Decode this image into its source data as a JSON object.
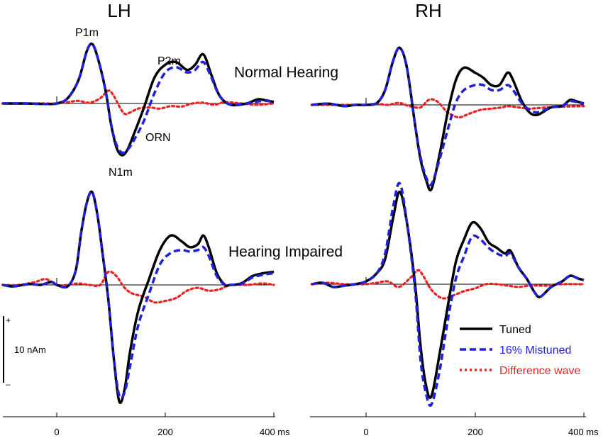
{
  "figure": {
    "hemisphere_left": "LH",
    "hemisphere_right": "RH",
    "condition_top": "Normal Hearing",
    "condition_bottom": "Hearing Impaired",
    "peaks": {
      "p1m": "P1m",
      "p2m": "P2m",
      "orn": "ORN",
      "n1m": "N1m"
    },
    "scale_bar": {
      "label": "10 nAm",
      "plus": "+",
      "minus": "–"
    },
    "legend": [
      {
        "label": "Tuned",
        "color": "#000000",
        "style": "solid"
      },
      {
        "label": "16% Mistuned",
        "color": "#1f1fdd",
        "style": "dashed"
      },
      {
        "label": "Difference wave",
        "color": "#ee2020",
        "style": "dotted"
      }
    ],
    "x_ticks_left": [
      "0",
      "200",
      "400 ms"
    ],
    "x_ticks_right": [
      "0",
      "200",
      "400 ms"
    ]
  },
  "chart_data": [
    {
      "type": "line",
      "panel": "LH",
      "condition": "Normal Hearing",
      "x_unit": "ms",
      "y_unit": "nAm",
      "xlim": [
        -100,
        400
      ],
      "series": [
        {
          "name": "Tuned",
          "color": "#000000",
          "style": "solid",
          "x": [
            -100,
            -60,
            -20,
            0,
            20,
            40,
            55,
            65,
            75,
            90,
            100,
            110,
            120,
            130,
            140,
            160,
            180,
            200,
            220,
            240,
            255,
            270,
            285,
            300,
            320,
            350,
            370,
            385,
            400
          ],
          "y": [
            0,
            0,
            -0.2,
            0,
            2,
            9,
            20,
            23,
            18,
            5,
            -8,
            -17,
            -20,
            -18,
            -13,
            -2,
            10,
            15,
            16,
            13,
            15,
            19,
            11,
            3,
            -0.5,
            0,
            1.6,
            1.2,
            0.6
          ]
        },
        {
          "name": "16% Mistuned",
          "color": "#1f1fdd",
          "style": "dashed",
          "x": [
            -100,
            -60,
            -20,
            0,
            20,
            40,
            55,
            65,
            75,
            90,
            100,
            110,
            120,
            130,
            140,
            160,
            180,
            200,
            220,
            240,
            255,
            270,
            285,
            300,
            320,
            350,
            370,
            385,
            400
          ],
          "y": [
            0,
            0,
            -0.2,
            0,
            2,
            9,
            20,
            23,
            18,
            5,
            -8,
            -16,
            -19,
            -18,
            -15,
            -7,
            4,
            12,
            14,
            12,
            13,
            16,
            10,
            3,
            -0.5,
            0,
            0.8,
            1.0,
            0.5
          ]
        },
        {
          "name": "Difference wave",
          "color": "#ee2020",
          "style": "dotted",
          "x": [
            -100,
            -60,
            -20,
            0,
            20,
            40,
            60,
            80,
            95,
            105,
            115,
            125,
            135,
            150,
            170,
            190,
            210,
            230,
            250,
            270,
            290,
            310,
            340,
            370,
            400
          ],
          "y": [
            0,
            0,
            0,
            0,
            0.5,
            1,
            0.3,
            2,
            5,
            3,
            -1,
            -4,
            -3.5,
            -2,
            -1.5,
            -2,
            -1,
            -1.2,
            0,
            0.3,
            -0.5,
            0.5,
            0,
            -0.5,
            0
          ]
        }
      ]
    },
    {
      "type": "line",
      "panel": "RH",
      "condition": "Normal Hearing",
      "x_unit": "ms",
      "y_unit": "nAm",
      "xlim": [
        -100,
        400
      ],
      "series": [
        {
          "name": "Tuned",
          "color": "#000000",
          "style": "solid",
          "x": [
            -100,
            -70,
            -40,
            -20,
            0,
            20,
            35,
            50,
            62,
            75,
            90,
            100,
            110,
            120,
            135,
            150,
            165,
            180,
            200,
            215,
            230,
            245,
            260,
            270,
            285,
            300,
            315,
            340,
            360,
            375,
            390,
            400
          ],
          "y": [
            0,
            0.5,
            -0.5,
            0,
            0,
            0.8,
            6,
            18,
            23,
            15,
            -8,
            -22,
            -30,
            -34,
            -20,
            -3,
            10,
            15,
            13,
            11,
            8,
            8,
            13,
            10,
            2,
            -3,
            -4,
            -1,
            -0.5,
            2,
            1.2,
            0.6
          ]
        },
        {
          "name": "16% Mistuned",
          "color": "#1f1fdd",
          "style": "dashed",
          "x": [
            -100,
            -70,
            -40,
            -20,
            0,
            20,
            35,
            50,
            62,
            75,
            90,
            100,
            110,
            120,
            135,
            150,
            165,
            180,
            200,
            215,
            230,
            245,
            260,
            270,
            285,
            300,
            315,
            340,
            360,
            375,
            390,
            400
          ],
          "y": [
            0,
            0.5,
            -0.5,
            0,
            0,
            0.8,
            6,
            18,
            23,
            15,
            -8,
            -21,
            -29,
            -32,
            -22,
            -10,
            1,
            6,
            8,
            8,
            6,
            6,
            8,
            6,
            1,
            -2,
            -3,
            -1,
            -0.5,
            1.5,
            1,
            0.5
          ]
        },
        {
          "name": "Difference wave",
          "color": "#ee2020",
          "style": "dotted",
          "x": [
            -100,
            -60,
            -20,
            0,
            20,
            40,
            60,
            80,
            100,
            115,
            130,
            150,
            170,
            190,
            210,
            230,
            250,
            260,
            280,
            300,
            320,
            350,
            400
          ],
          "y": [
            0,
            0,
            0,
            0,
            0.5,
            0,
            0.8,
            -0.5,
            -1,
            2,
            1.5,
            -3,
            -5,
            -3.5,
            -2,
            -1.5,
            -1,
            -0.5,
            -1,
            -1.5,
            -1.2,
            -0.8,
            -0.5
          ]
        }
      ]
    },
    {
      "type": "line",
      "panel": "LH",
      "condition": "Hearing Impaired",
      "x_unit": "ms",
      "y_unit": "nAm",
      "xlim": [
        -100,
        400
      ],
      "series": [
        {
          "name": "Tuned",
          "color": "#000000",
          "style": "solid",
          "x": [
            -100,
            -80,
            -50,
            -30,
            -10,
            0,
            20,
            35,
            45,
            55,
            65,
            75,
            85,
            95,
            105,
            115,
            125,
            135,
            150,
            170,
            190,
            210,
            230,
            245,
            260,
            270,
            280,
            295,
            310,
            320,
            340,
            360,
            380,
            400
          ],
          "y": [
            0,
            -0.5,
            0.3,
            0,
            1,
            0,
            -0.5,
            5,
            18,
            28,
            32,
            24,
            10,
            -5,
            -25,
            -40,
            -36,
            -23,
            -9,
            2,
            12,
            17,
            15,
            13,
            14,
            17,
            13,
            4,
            0,
            0,
            0.5,
            3,
            4,
            4.5
          ]
        },
        {
          "name": "16% Mistuned",
          "color": "#1f1fdd",
          "style": "dashed",
          "x": [
            -100,
            -80,
            -50,
            -30,
            -10,
            0,
            20,
            35,
            45,
            55,
            65,
            75,
            85,
            95,
            105,
            115,
            125,
            135,
            150,
            170,
            190,
            210,
            230,
            245,
            260,
            270,
            280,
            295,
            310,
            320,
            340,
            360,
            380,
            400
          ],
          "y": [
            0,
            -0.5,
            0.3,
            0,
            1,
            0,
            -0.5,
            5,
            18,
            28,
            32,
            24,
            10,
            -5,
            -25,
            -38,
            -37,
            -28,
            -14,
            -3,
            7,
            11,
            12,
            11.5,
            12,
            13,
            10,
            3,
            0,
            0,
            0.3,
            2.5,
            3.5,
            4
          ]
        },
        {
          "name": "Difference wave",
          "color": "#ee2020",
          "style": "dotted",
          "x": [
            -100,
            -70,
            -40,
            -20,
            0,
            20,
            40,
            60,
            80,
            95,
            110,
            125,
            140,
            160,
            180,
            200,
            220,
            240,
            260,
            280,
            300,
            320,
            350,
            380,
            400
          ],
          "y": [
            0,
            0,
            1,
            2,
            0,
            0,
            0.5,
            0,
            0,
            4.5,
            3,
            -1,
            -3,
            -4,
            -6,
            -5.5,
            -4.5,
            -2,
            -1,
            -2,
            -1.5,
            0,
            0,
            0.5,
            0
          ]
        }
      ]
    },
    {
      "type": "line",
      "panel": "RH",
      "condition": "Hearing Impaired",
      "x_unit": "ms",
      "y_unit": "nAm",
      "xlim": [
        -100,
        400
      ],
      "series": [
        {
          "name": "Tuned",
          "color": "#000000",
          "style": "solid",
          "x": [
            -100,
            -80,
            -60,
            -40,
            -20,
            0,
            20,
            35,
            50,
            62,
            75,
            90,
            100,
            110,
            120,
            135,
            150,
            165,
            180,
            195,
            210,
            225,
            240,
            255,
            265,
            280,
            295,
            310,
            320,
            340,
            360,
            375,
            390,
            400
          ],
          "y": [
            0,
            0.5,
            -1,
            -0.5,
            0,
            1,
            4,
            9,
            24,
            33,
            22,
            0,
            -22,
            -36,
            -40,
            -25,
            -8,
            8,
            16,
            22,
            20,
            15,
            13,
            11,
            12,
            6,
            2,
            -3,
            -4.5,
            -1,
            1,
            3,
            2,
            1.5
          ]
        },
        {
          "name": "16% Mistuned",
          "color": "#1f1fdd",
          "style": "dashed",
          "x": [
            -100,
            -80,
            -60,
            -40,
            -20,
            0,
            20,
            35,
            50,
            62,
            75,
            90,
            100,
            110,
            120,
            135,
            150,
            165,
            180,
            195,
            210,
            225,
            240,
            255,
            265,
            280,
            295,
            310,
            320,
            340,
            360,
            375,
            390,
            400
          ],
          "y": [
            0,
            0.5,
            -1,
            -0.5,
            0,
            1,
            4,
            11,
            28,
            36,
            22,
            -2,
            -27,
            -39,
            -43,
            -31,
            -13,
            2,
            10,
            17,
            16,
            13,
            11,
            10,
            11,
            6,
            2,
            -3,
            -4.5,
            -1,
            1,
            3,
            2,
            1.5
          ]
        },
        {
          "name": "Difference wave",
          "color": "#ee2020",
          "style": "dotted",
          "x": [
            -100,
            -70,
            -40,
            -10,
            0,
            20,
            40,
            60,
            80,
            95,
            105,
            120,
            140,
            160,
            180,
            200,
            220,
            240,
            260,
            280,
            300,
            330,
            360,
            400
          ],
          "y": [
            0,
            0.5,
            0,
            0,
            0,
            0.5,
            1,
            -1,
            2,
            5,
            3,
            -2,
            -5,
            -4,
            -2.5,
            -1.5,
            0,
            0,
            -0.5,
            -1,
            -0.5,
            -0.5,
            0,
            0
          ]
        }
      ]
    }
  ]
}
